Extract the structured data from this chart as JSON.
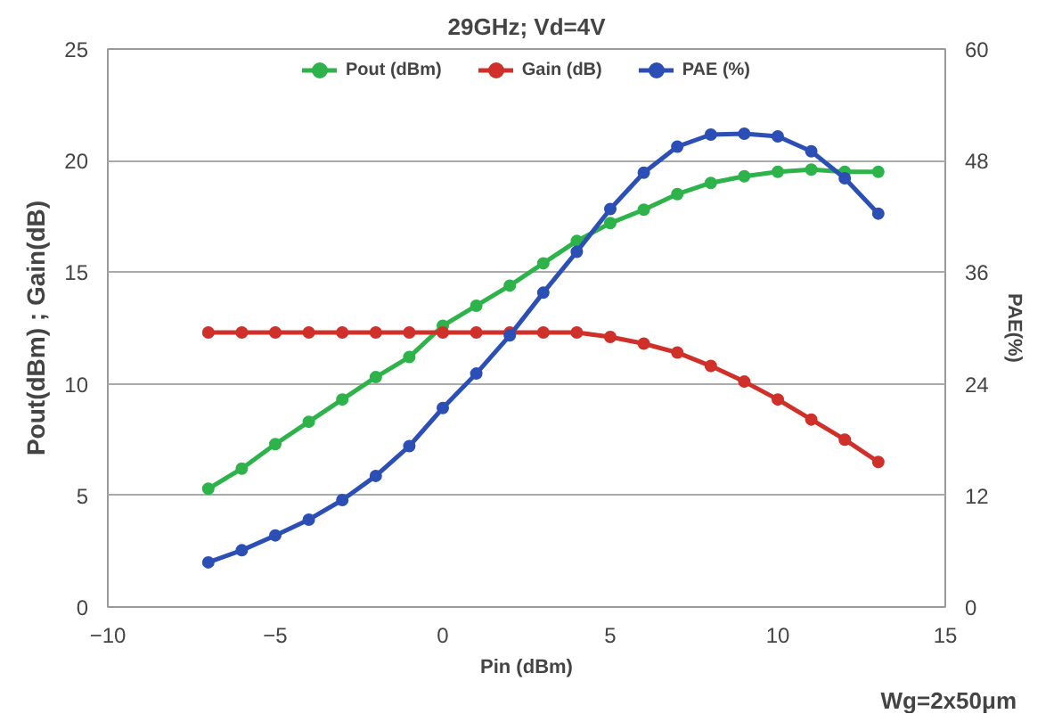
{
  "chart_data": {
    "type": "line",
    "title": "29GHz; Vd=4V",
    "xlabel": "Pin (dBm)",
    "ylabel": "Pout(dBm) ; Gain(dB)",
    "y2label": "PAE(%)",
    "annotations": [
      "Wg=2x50μm"
    ],
    "x": [
      -7,
      -6,
      -5,
      -4,
      -3,
      -2,
      -1,
      0,
      1,
      2,
      3,
      4,
      5,
      6,
      7,
      8,
      9,
      10,
      11,
      12,
      13
    ],
    "series": [
      {
        "name": "Pout (dBm)",
        "color": "#2db34a",
        "values": [
          5.3,
          6.2,
          7.3,
          8.3,
          9.3,
          10.3,
          11.2,
          12.6,
          13.5,
          14.4,
          15.4,
          16.4,
          17.2,
          17.8,
          18.5,
          19.0,
          19.3,
          19.5,
          19.6,
          19.5,
          19.5
        ]
      },
      {
        "name": "Gain (dB)",
        "color": "#d0302a",
        "values": [
          12.3,
          12.3,
          12.3,
          12.3,
          12.3,
          12.3,
          12.3,
          12.3,
          12.3,
          12.3,
          12.3,
          12.3,
          12.1,
          11.8,
          11.4,
          10.8,
          10.1,
          9.3,
          8.4,
          7.5,
          6.5
        ]
      },
      {
        "name": "PAE (%)",
        "color": "#2c4fb5",
        "axis": "y2",
        "values": [
          4.8,
          6.1,
          7.7,
          9.4,
          11.5,
          14.1,
          17.3,
          21.4,
          25.1,
          29.2,
          33.8,
          38.2,
          42.8,
          46.7,
          49.5,
          50.8,
          50.9,
          50.6,
          49.0,
          46.1,
          42.3
        ]
      }
    ],
    "xlim": [
      -10,
      15
    ],
    "xticks": [
      -10,
      -5,
      0,
      5,
      10,
      15
    ],
    "ylim": [
      0,
      25
    ],
    "yticks": [
      0,
      5,
      10,
      15,
      20,
      25
    ],
    "y2lim": [
      0,
      60
    ],
    "y2ticks": [
      0,
      12,
      24,
      36,
      48,
      60
    ],
    "grid": "y",
    "legend": "top",
    "marker": "circle",
    "line_style": "solid"
  }
}
